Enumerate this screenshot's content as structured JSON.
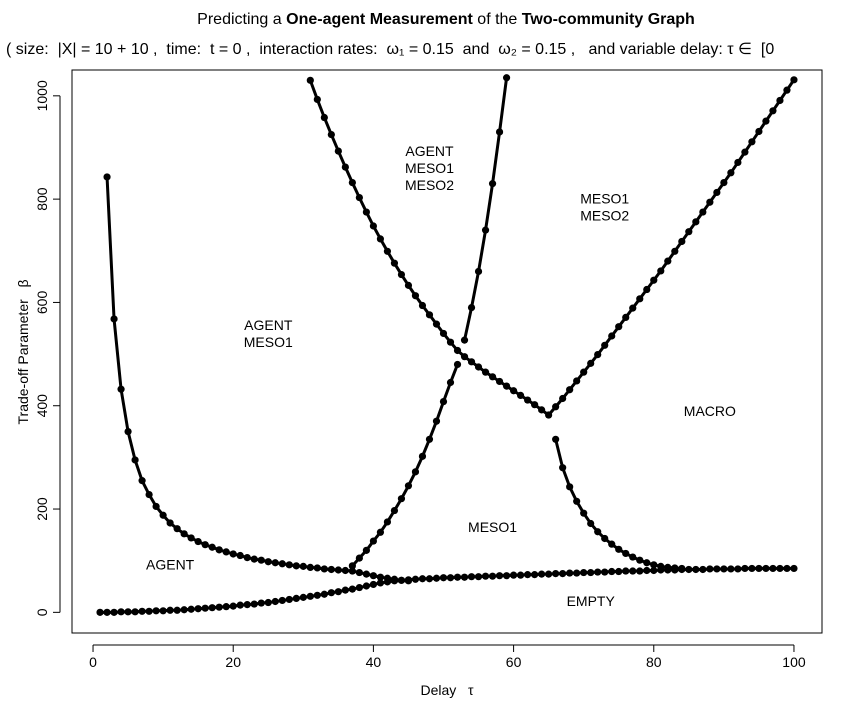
{
  "chart_data": {
    "type": "line",
    "title": [
      "Predicting a",
      "One-agent Measurement",
      "of the",
      "Two-community Graph"
    ],
    "subtitle": "( size:  |X| = 10 + 10 ,  time:  t = 0 ,  interaction rates:  ω₁ = 0.15  and  ω₂ = 0.15 ,   and variable delay: τ ∈  [0",
    "x_label": "Delay   τ",
    "y_label": "Trade-off Parameter   β",
    "xlim": [
      -3,
      104
    ],
    "ylim": [
      -40,
      1050
    ],
    "xticks": [
      0,
      20,
      40,
      60,
      80,
      100
    ],
    "yticks": [
      0,
      200,
      400,
      600,
      800,
      1000
    ],
    "color": "#000000",
    "annotations": [
      [
        "AGENT"
      ],
      [
        "AGENT",
        "MESO1"
      ],
      [
        "AGENT",
        "MESO1",
        "MESO2"
      ],
      [
        "MESO1",
        "MESO2"
      ],
      [
        "MACRO"
      ],
      [
        "MESO1"
      ],
      [
        "EMPTY"
      ]
    ],
    "series": [
      {
        "x": [
          2,
          3,
          4,
          5,
          6,
          7,
          8,
          9,
          10,
          11,
          12,
          13,
          14,
          15,
          16,
          17,
          18,
          19,
          20,
          21,
          22,
          23,
          24,
          25,
          26,
          27,
          28,
          29,
          30,
          31,
          32,
          33,
          34,
          35,
          36,
          37,
          38,
          39,
          40,
          41,
          42,
          43,
          44,
          45
        ],
        "values": [
          843,
          568,
          432,
          350,
          295,
          255,
          228,
          205,
          188,
          173,
          162,
          152,
          144,
          137,
          131,
          126,
          121,
          117,
          113,
          110,
          106,
          103,
          101,
          98,
          96,
          94,
          92,
          90,
          89,
          87,
          86,
          84,
          83,
          82,
          81,
          80,
          77,
          74,
          71,
          68,
          66,
          64,
          62,
          61
        ]
      },
      {
        "x": [
          1,
          2,
          3,
          4,
          5,
          6,
          7,
          8,
          9,
          10,
          11,
          12,
          13,
          14,
          15,
          16,
          17,
          18,
          19,
          20,
          21,
          22,
          23,
          24,
          25,
          26,
          27,
          28,
          29,
          30,
          31,
          32,
          33,
          34,
          35,
          36,
          37,
          38,
          39,
          40,
          41,
          42,
          43,
          44,
          45,
          46,
          47,
          48,
          49,
          50,
          51,
          52,
          53,
          54,
          55,
          56,
          57,
          58,
          59,
          60,
          61,
          62,
          63,
          64,
          65,
          66,
          67,
          68,
          69,
          70,
          71,
          72,
          73,
          74,
          75,
          76,
          77,
          78,
          79,
          80,
          81,
          82,
          83,
          84,
          85,
          86,
          87,
          88,
          89,
          90,
          91,
          92,
          93,
          94,
          95,
          96,
          97,
          98,
          99,
          100
        ],
        "values": [
          0,
          0,
          0,
          1,
          1,
          1,
          2,
          2,
          3,
          3,
          4,
          4,
          5,
          6,
          7,
          8,
          9,
          10,
          11,
          12,
          14,
          15,
          16,
          18,
          19,
          21,
          23,
          25,
          27,
          29,
          31,
          33,
          35,
          38,
          40,
          43,
          45,
          48,
          51,
          54,
          57,
          59,
          61,
          62,
          63,
          64,
          65,
          65,
          66,
          67,
          67,
          68,
          68,
          69,
          69,
          70,
          70,
          71,
          71,
          72,
          72,
          73,
          73,
          74,
          74,
          75,
          75,
          76,
          76,
          77,
          77,
          78,
          78,
          79,
          79,
          80,
          80,
          80,
          81,
          81,
          82,
          82,
          82,
          83,
          83,
          83,
          83,
          84,
          84,
          84,
          84,
          84,
          85,
          85,
          85,
          85,
          85,
          85,
          85,
          85
        ]
      },
      {
        "x": [
          37,
          38,
          39,
          40,
          41,
          42,
          43,
          44,
          45,
          46,
          47,
          48,
          49,
          50,
          51,
          52
        ],
        "values": [
          90,
          105,
          120,
          138,
          155,
          175,
          197,
          220,
          245,
          272,
          302,
          335,
          370,
          408,
          445,
          480
        ]
      },
      {
        "x": [
          53,
          54,
          55,
          56,
          57,
          58,
          59
        ],
        "values": [
          527,
          590,
          660,
          740,
          830,
          930,
          1035
        ]
      },
      {
        "x": [
          31,
          32,
          33,
          34,
          35,
          36,
          37,
          38,
          39,
          40,
          41,
          42,
          43,
          44,
          45,
          46,
          47,
          48,
          49,
          50,
          51,
          52,
          53,
          54,
          55,
          56,
          57,
          58,
          59,
          60,
          61,
          62,
          63,
          64,
          65,
          66,
          67,
          68,
          69,
          70,
          71,
          72,
          73,
          74,
          75,
          76,
          77,
          78,
          79,
          80,
          81,
          82,
          83,
          84,
          85,
          86,
          87,
          88,
          89,
          90,
          91,
          92,
          93,
          94,
          95,
          96,
          97,
          98,
          99,
          100
        ],
        "values": [
          1030,
          993,
          958,
          925,
          893,
          862,
          832,
          803,
          775,
          748,
          723,
          699,
          676,
          654,
          633,
          613,
          594,
          576,
          558,
          540,
          523,
          507,
          495,
          485,
          475,
          465,
          456,
          447,
          438,
          429,
          420,
          411,
          402,
          392,
          382,
          398,
          414,
          431,
          448,
          465,
          482,
          499,
          517,
          535,
          553,
          571,
          589,
          607,
          625,
          643,
          661,
          680,
          699,
          718,
          737,
          756,
          775,
          794,
          813,
          832,
          851,
          871,
          891,
          911,
          931,
          951,
          971,
          991,
          1011,
          1031
        ]
      },
      {
        "x": [
          66,
          67,
          68,
          69,
          70,
          71,
          72,
          73,
          74,
          75,
          76,
          77,
          78,
          79,
          80,
          81,
          82,
          83,
          84
        ],
        "values": [
          335,
          280,
          243,
          215,
          192,
          172,
          156,
          143,
          132,
          122,
          114,
          107,
          101,
          96,
          92,
          89,
          87,
          86,
          85
        ]
      }
    ]
  }
}
